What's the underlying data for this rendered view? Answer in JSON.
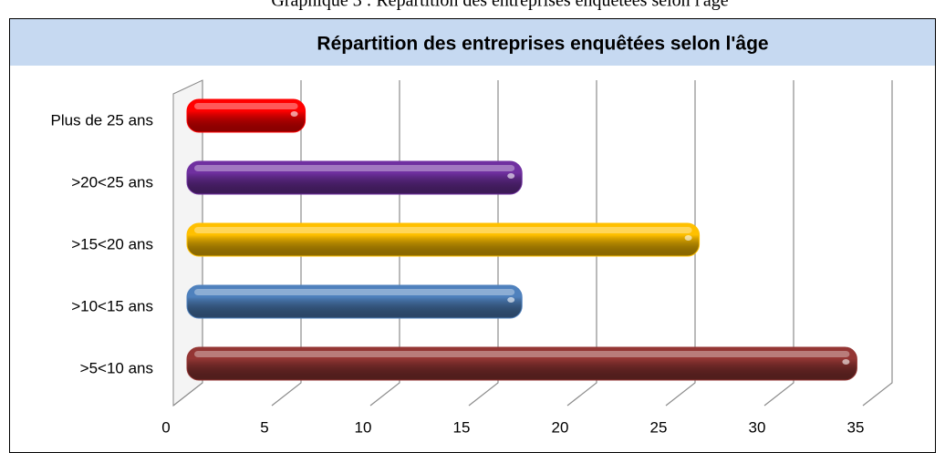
{
  "caption": "Graphique 3 : Répartition des entreprises enquêtées selon l'âge",
  "chart_data": {
    "type": "bar",
    "orientation": "horizontal",
    "title": "Répartition des entreprises enquêtées selon l'âge",
    "categories": [
      "Plus de 25 ans",
      ">20<25 ans",
      ">15<20 ans",
      ">10<15 ans",
      ">5<10 ans"
    ],
    "values": [
      6,
      17,
      26,
      17,
      34
    ],
    "colors": [
      "#ff0000",
      "#7030a0",
      "#ffc000",
      "#4f81bd",
      "#943634"
    ],
    "xlim": [
      0,
      35
    ],
    "xticks": [
      0,
      5,
      10,
      15,
      20,
      25,
      30,
      35
    ],
    "grid": true
  }
}
